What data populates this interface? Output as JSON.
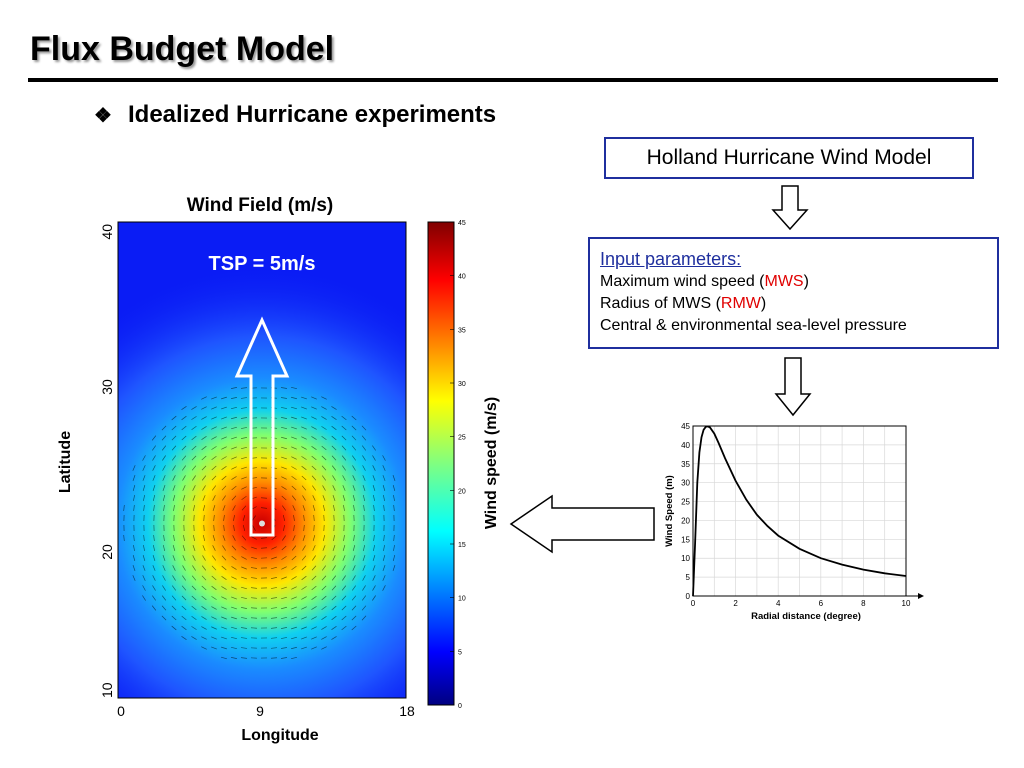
{
  "slide": {
    "title": "Flux Budget Model",
    "bullet_glyph": "❖",
    "bullet_text": "Idealized Hurricane experiments"
  },
  "holland_box": {
    "label": "Holland Hurricane Wind Model"
  },
  "input_params": {
    "heading": "Input parameters:",
    "line1_prefix": "Maximum wind speed (",
    "line1_highlight": "MWS",
    "line1_suffix": ")",
    "line2_prefix": "Radius of MWS (",
    "line2_highlight": "RMW",
    "line2_suffix": ")",
    "line3": "Central & environmental sea-level pressure"
  },
  "colors": {
    "box_border": "#1f2f9e",
    "highlight": "#e00000",
    "background_field": "#0a1cf5"
  },
  "chart_data": [
    {
      "type": "heatmap",
      "title": "Wind Field (m/s)",
      "xlabel": "Longitude",
      "ylabel": "Latitude",
      "x_ticks": [
        "0",
        "9",
        "18"
      ],
      "y_ticks": [
        "10",
        "20",
        "30",
        "40"
      ],
      "xlim": [
        0,
        18
      ],
      "ylim": [
        10,
        40
      ],
      "annotation": "TSP = 5m/s",
      "storm_center": {
        "lon": 9,
        "lat": 21
      },
      "storm_motion": "north",
      "colorbar": {
        "label": "Wind speed (m/s)",
        "range": [
          0,
          45
        ],
        "ticks": [
          "0",
          "5",
          "10",
          "15",
          "20",
          "25",
          "30",
          "35",
          "40",
          "45"
        ],
        "colormap": "jet"
      }
    },
    {
      "type": "line",
      "xlabel": "Radial distance (degree)",
      "ylabel": "Wind Speed (m)",
      "xlim": [
        0,
        10
      ],
      "ylim": [
        0,
        45
      ],
      "x_ticks": [
        "0",
        "2",
        "4",
        "6",
        "8",
        "10"
      ],
      "y_ticks": [
        "0",
        "5",
        "10",
        "15",
        "20",
        "25",
        "30",
        "35",
        "40",
        "45"
      ],
      "grid": true,
      "x": [
        0,
        0.1,
        0.2,
        0.3,
        0.4,
        0.5,
        0.6,
        0.7,
        0.8,
        1.0,
        1.2,
        1.5,
        2.0,
        2.5,
        3.0,
        3.5,
        4.0,
        5.0,
        6.0,
        7.0,
        8.0,
        9.0,
        10.0
      ],
      "y": [
        0,
        14,
        30,
        38,
        42,
        44,
        44.8,
        44.9,
        44.6,
        43.0,
        40.5,
        36.5,
        30.5,
        25.5,
        21.5,
        18.5,
        16.0,
        12.5,
        10.0,
        8.3,
        7.0,
        6.0,
        5.3
      ]
    }
  ]
}
